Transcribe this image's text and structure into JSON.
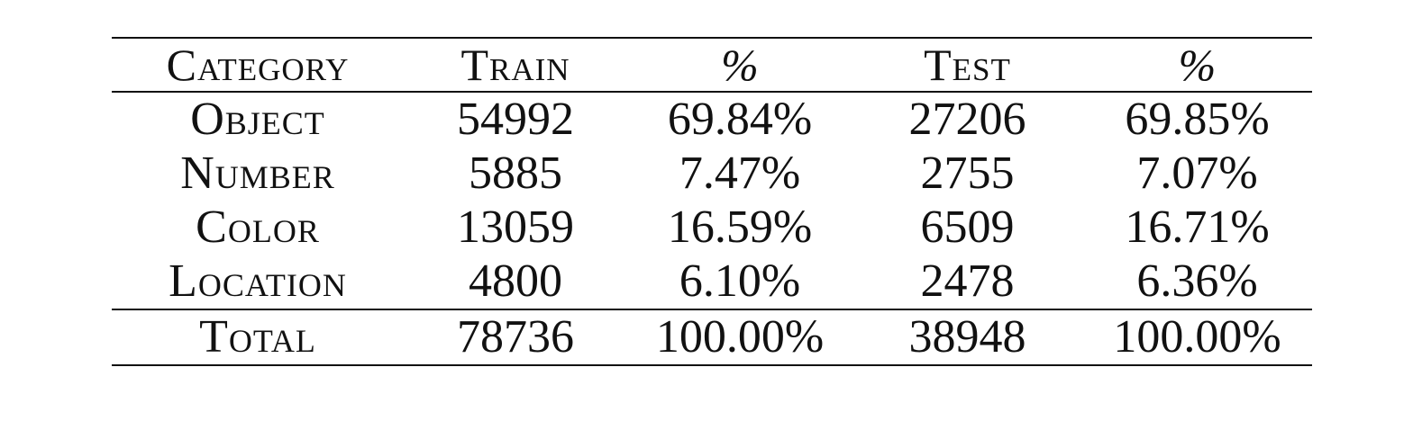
{
  "table": {
    "headers": {
      "category": "Category",
      "train": "Train",
      "train_pct": "%",
      "test": "Test",
      "test_pct": "%"
    },
    "rows": [
      {
        "category": "Object",
        "train": "54992",
        "train_pct": "69.84%",
        "test": "27206",
        "test_pct": "69.85%"
      },
      {
        "category": "Number",
        "train": "5885",
        "train_pct": "7.47%",
        "test": "2755",
        "test_pct": "7.07%"
      },
      {
        "category": "Color",
        "train": "13059",
        "train_pct": "16.59%",
        "test": "6509",
        "test_pct": "16.71%"
      },
      {
        "category": "Location",
        "train": "4800",
        "train_pct": "6.10%",
        "test": "2478",
        "test_pct": "6.36%"
      }
    ],
    "total": {
      "category": "Total",
      "train": "78736",
      "train_pct": "100.00%",
      "test": "38948",
      "test_pct": "100.00%"
    }
  }
}
